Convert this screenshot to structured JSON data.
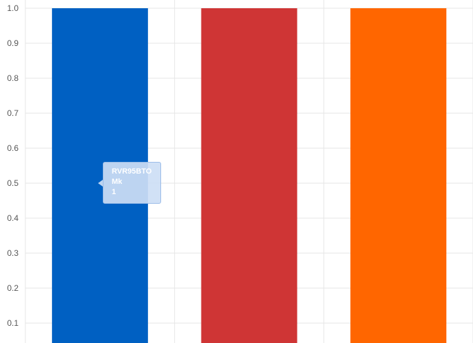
{
  "chart_data": {
    "type": "bar",
    "categories": [
      "",
      "",
      ""
    ],
    "series": [
      {
        "values": [
          1,
          1,
          1
        ]
      }
    ],
    "colors": [
      "#0060c2",
      "#cf3535",
      "#ff6600"
    ],
    "ylim": [
      0,
      1
    ],
    "yticks": [
      "0.1",
      "0.2",
      "0.3",
      "0.4",
      "0.5",
      "0.6",
      "0.7",
      "0.8",
      "0.9",
      "1.0"
    ],
    "grid": true,
    "tooltip": {
      "title": "RVR95BTO",
      "series_name": "Mk",
      "value": "1"
    }
  }
}
